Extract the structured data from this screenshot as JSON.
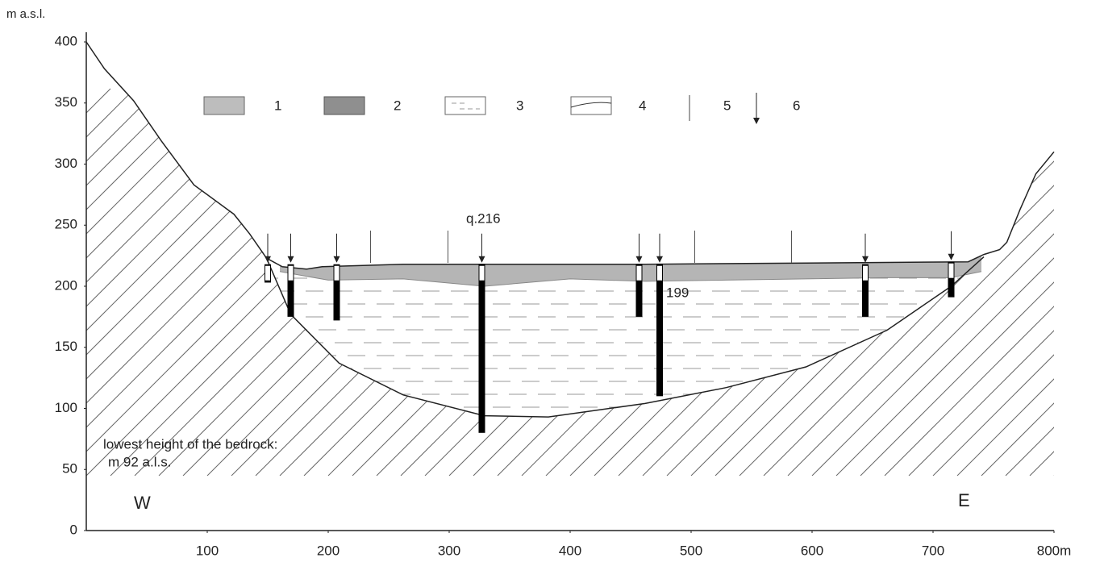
{
  "chart_data": {
    "type": "profile",
    "y_label": "m a.s.l.",
    "xlim": [
      0,
      800
    ],
    "ylim": [
      0,
      400
    ],
    "xticks": [
      100,
      200,
      300,
      400,
      500,
      600,
      700,
      {
        "value": 800,
        "label": "800m"
      }
    ],
    "yticks": [
      0,
      50,
      100,
      150,
      200,
      250,
      300,
      350,
      400
    ],
    "surface": {
      "x": [
        0,
        15,
        39,
        62,
        89,
        122,
        135,
        149,
        162,
        182,
        195,
        262,
        329,
        462,
        595,
        729,
        742,
        755,
        761,
        772,
        785,
        800
      ],
      "elev": [
        400,
        378,
        352,
        319,
        283,
        259,
        243,
        223,
        216,
        214,
        216,
        218,
        218,
        218,
        219,
        220,
        226,
        230,
        236,
        263,
        292,
        310
      ]
    },
    "bedrock": {
      "x": [
        149,
        169,
        209,
        262,
        329,
        382,
        462,
        529,
        595,
        662,
        715,
        742
      ],
      "elev": [
        223,
        177,
        137,
        111,
        94,
        93,
        104,
        117,
        134,
        164,
        200,
        224
      ]
    },
    "layer_base": {
      "x": [
        160,
        200,
        262,
        329,
        400,
        462,
        529,
        595,
        662,
        715,
        740
      ],
      "elev": [
        212,
        205,
        206,
        200,
        206,
        204,
        205,
        206,
        207,
        207,
        212
      ]
    },
    "boreholes": {
      "x": [
        150,
        169,
        207,
        327,
        457,
        474,
        644,
        715
      ],
      "top": [
        218,
        218,
        218,
        218,
        218,
        218,
        218,
        220
      ],
      "bottom": [
        203,
        175,
        172,
        80,
        175,
        110,
        175,
        191
      ]
    },
    "section_lines": {
      "x": [
        235,
        299,
        503,
        583
      ]
    },
    "legend": [
      "1",
      "2",
      "3",
      "4",
      "5",
      "6"
    ],
    "annotations": [
      "q.216",
      "199",
      "lowest height of the bedrock:",
      "m 92 a.l.s.",
      "W",
      "E"
    ]
  }
}
